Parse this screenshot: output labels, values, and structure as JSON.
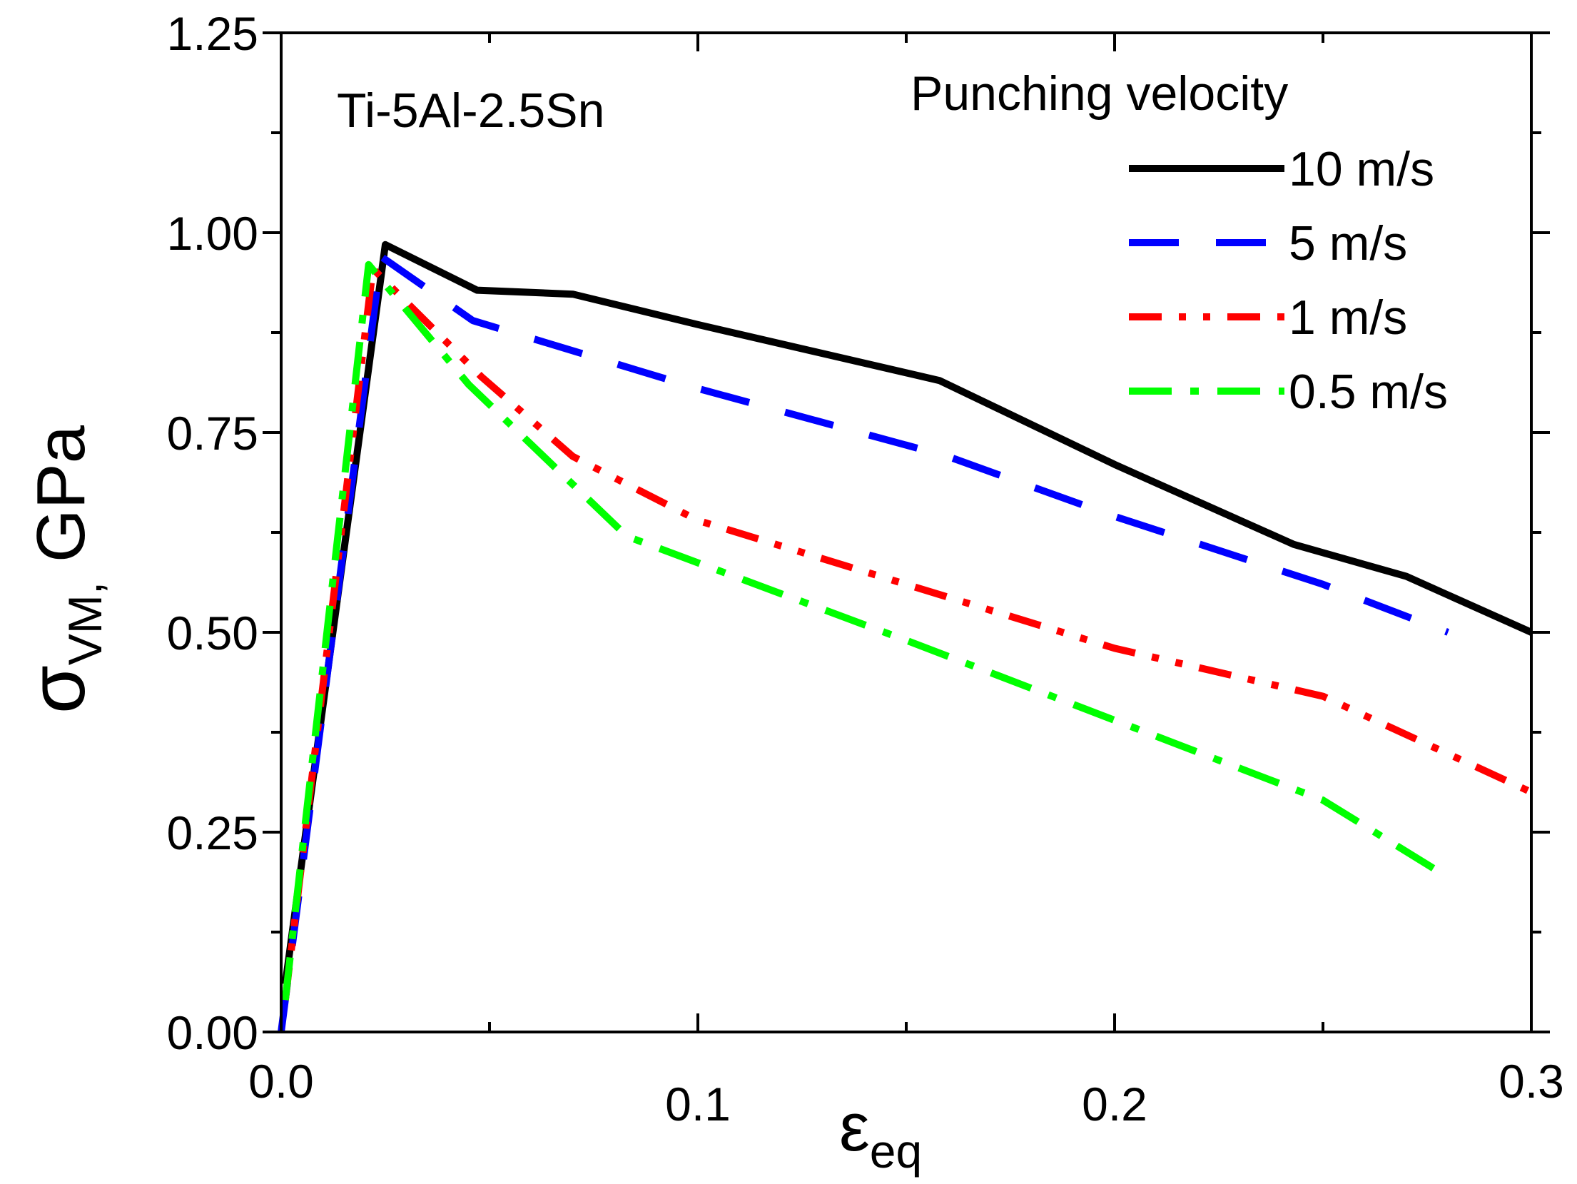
{
  "chart_data": {
    "type": "line",
    "title": "",
    "annotation": "Ti-5Al-2.5Sn",
    "xlabel": {
      "symbol": "ε",
      "subscript": "eq"
    },
    "ylabel": {
      "symbol": "σ",
      "subscript": "VM,",
      "unit": " GPa"
    },
    "xlim": [
      0.0,
      0.3
    ],
    "ylim": [
      0.0,
      1.25
    ],
    "x_ticks": [
      {
        "value": 0.0,
        "label": "0.0"
      },
      {
        "value": 0.1,
        "label": "0.1"
      },
      {
        "value": 0.2,
        "label": "0.2"
      },
      {
        "value": 0.3,
        "label": "0.3"
      }
    ],
    "x_minor_ticks": [
      0.05,
      0.15,
      0.25
    ],
    "y_ticks": [
      {
        "value": 0.0,
        "label": "0.00"
      },
      {
        "value": 0.25,
        "label": "0.25"
      },
      {
        "value": 0.5,
        "label": "0.50"
      },
      {
        "value": 0.75,
        "label": "0.75"
      },
      {
        "value": 1.0,
        "label": "1.00"
      },
      {
        "value": 1.25,
        "label": "1.25"
      }
    ],
    "y_minor_ticks": [
      0.125,
      0.375,
      0.625,
      0.875,
      1.125
    ],
    "grid": false,
    "legend": {
      "title": "Punching velocity",
      "position": "top-right"
    },
    "series": [
      {
        "name": "10 m/s",
        "color": "#000000",
        "style": "solid",
        "points": [
          [
            0.001,
            0.06
          ],
          [
            0.025,
            0.985
          ],
          [
            0.047,
            0.928
          ],
          [
            0.07,
            0.923
          ],
          [
            0.1,
            0.885
          ],
          [
            0.158,
            0.815
          ],
          [
            0.2,
            0.71
          ],
          [
            0.243,
            0.61
          ],
          [
            0.27,
            0.57
          ],
          [
            0.3,
            0.5
          ]
        ]
      },
      {
        "name": "5 m/s",
        "color": "#0000ff",
        "style": "dash",
        "points": [
          [
            0.0,
            0.0
          ],
          [
            0.024,
            0.97
          ],
          [
            0.046,
            0.89
          ],
          [
            0.1,
            0.805
          ],
          [
            0.16,
            0.72
          ],
          [
            0.2,
            0.645
          ],
          [
            0.25,
            0.56
          ],
          [
            0.28,
            0.5
          ]
        ]
      },
      {
        "name": "1 m/s",
        "color": "#ff0000",
        "style": "dashdotdot",
        "points": [
          [
            0.001,
            0.04
          ],
          [
            0.022,
            0.955
          ],
          [
            0.048,
            0.82
          ],
          [
            0.07,
            0.72
          ],
          [
            0.1,
            0.64
          ],
          [
            0.15,
            0.56
          ],
          [
            0.2,
            0.48
          ],
          [
            0.25,
            0.42
          ],
          [
            0.3,
            0.3
          ]
        ]
      },
      {
        "name": "0.5 m/s",
        "color": "#00ff00",
        "style": "dashdot",
        "points": [
          [
            0.001,
            0.04
          ],
          [
            0.021,
            0.96
          ],
          [
            0.045,
            0.81
          ],
          [
            0.083,
            0.62
          ],
          [
            0.15,
            0.49
          ],
          [
            0.2,
            0.39
          ],
          [
            0.25,
            0.29
          ],
          [
            0.278,
            0.2
          ]
        ]
      }
    ]
  }
}
